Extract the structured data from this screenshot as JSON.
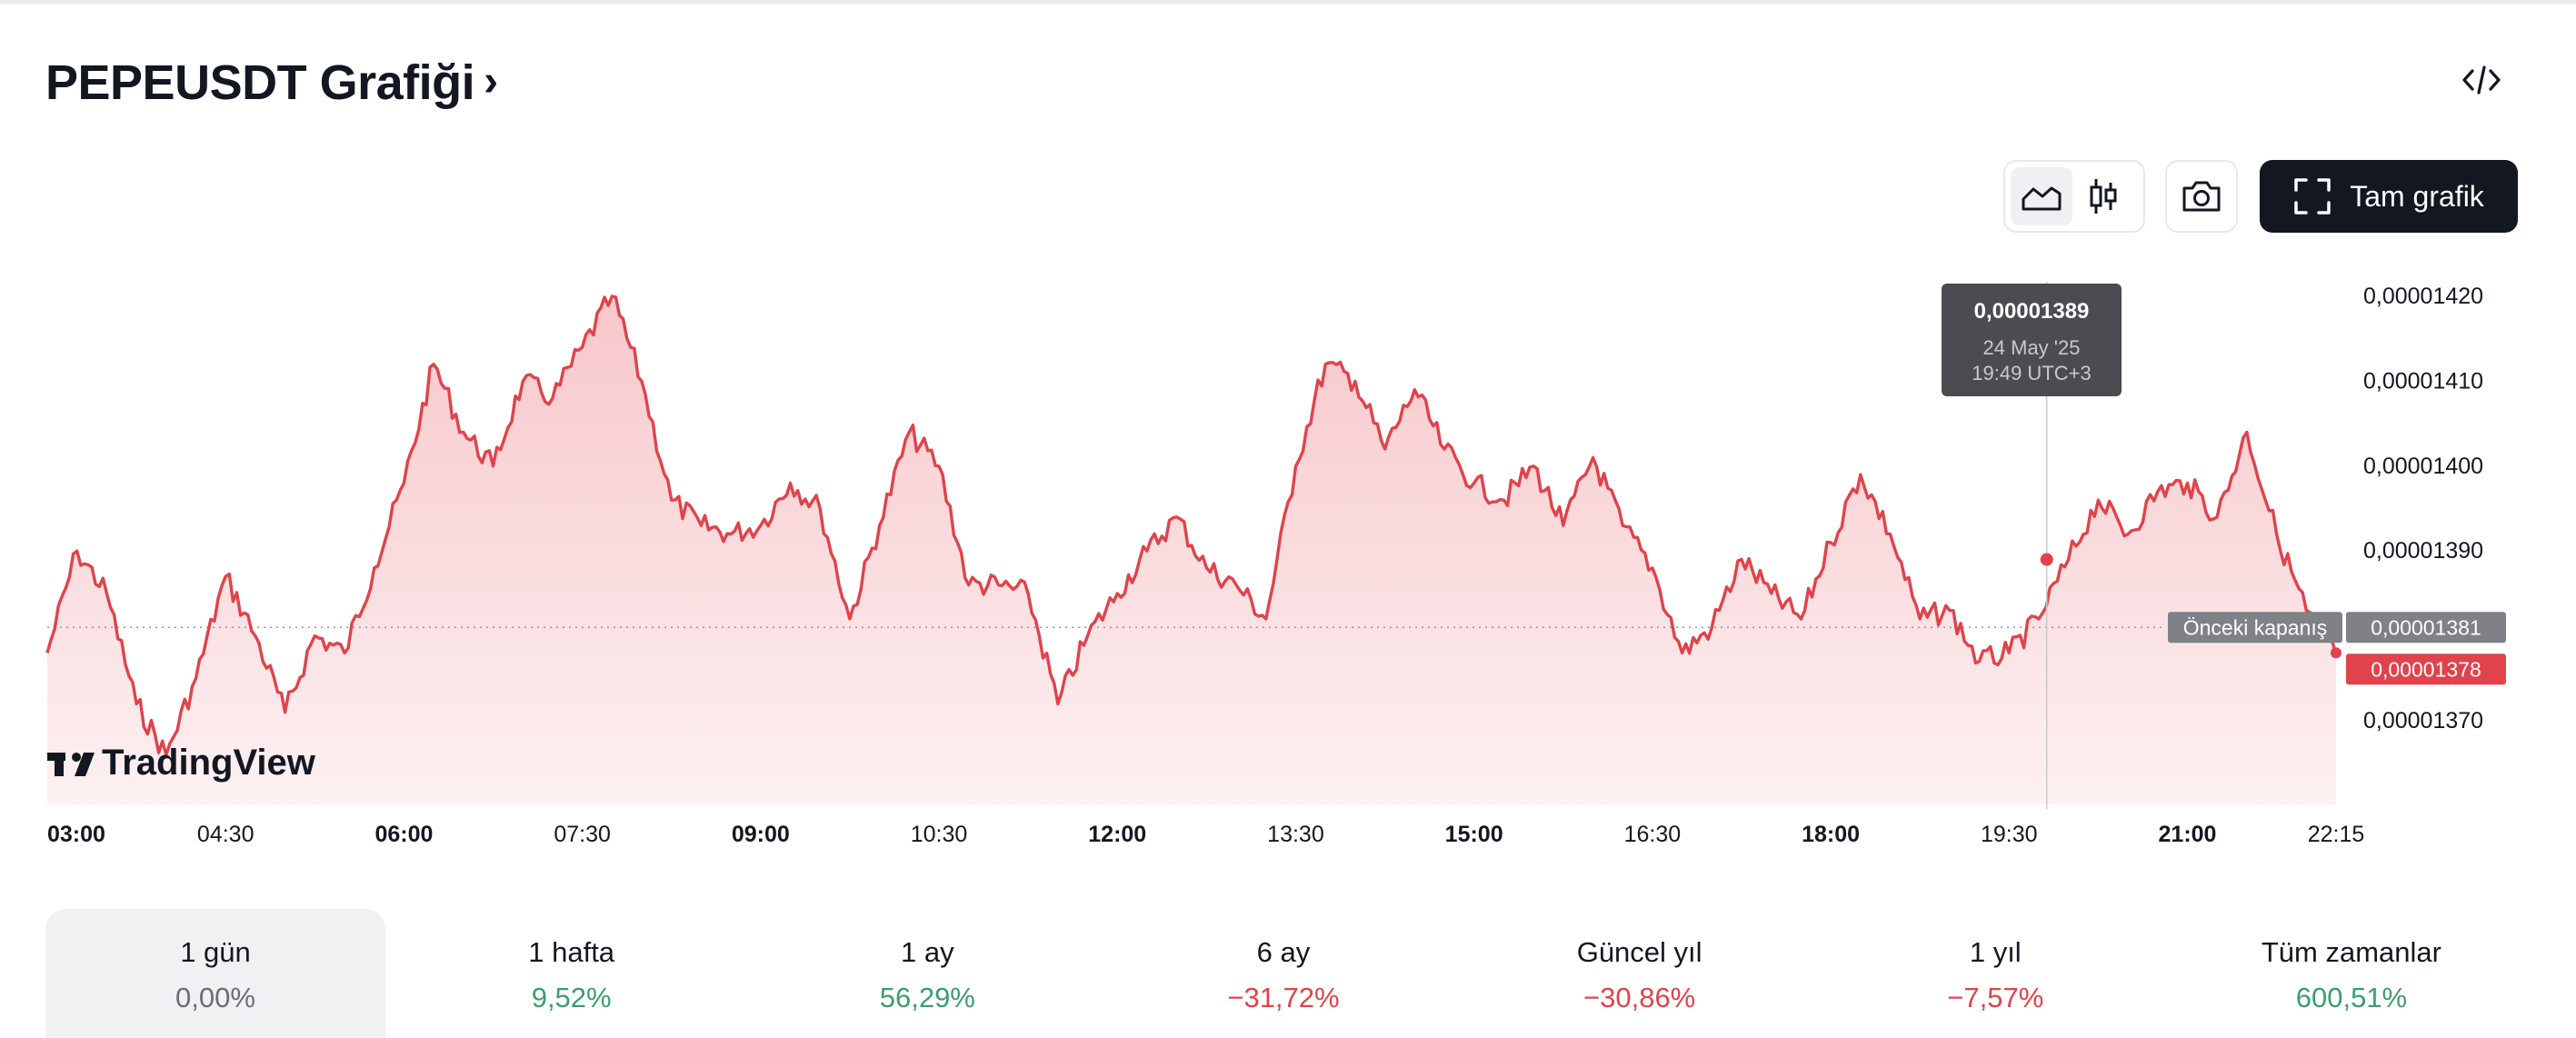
{
  "title": "PEPEUSDT Grafiği",
  "title_chevron": "›",
  "icons": {
    "embed": "code-embed-icon",
    "area_chart": "area-chart-icon",
    "candles": "candlestick-icon",
    "camera": "camera-icon",
    "fullscreen": "fullscreen-corners-icon",
    "logo": "tradingview-logo"
  },
  "buttons": {
    "full_chart": "Tam grafik"
  },
  "colors": {
    "line": "#e0434b",
    "area_top": "#f7c7ca",
    "negative": "#e0434b",
    "positive": "#3a9e6e",
    "tooltip_bg": "#4a4c52",
    "prev_close_bg": "#7f8186"
  },
  "chart_data": {
    "type": "area",
    "symbol": "PEPEUSDT",
    "ylim": [
      1.361e-05,
      1.423e-05
    ],
    "y_ticks": [
      "0,00001420",
      "0,00001410",
      "0,00001400",
      "0,00001390",
      "0,00001370"
    ],
    "x_ticks": [
      {
        "label": "03:00",
        "bold": true
      },
      {
        "label": "04:30",
        "bold": false
      },
      {
        "label": "06:00",
        "bold": true
      },
      {
        "label": "07:30",
        "bold": false
      },
      {
        "label": "09:00",
        "bold": true
      },
      {
        "label": "10:30",
        "bold": false
      },
      {
        "label": "12:00",
        "bold": true
      },
      {
        "label": "13:30",
        "bold": false
      },
      {
        "label": "15:00",
        "bold": true
      },
      {
        "label": "16:30",
        "bold": false
      },
      {
        "label": "18:00",
        "bold": true
      },
      {
        "label": "19:30",
        "bold": false
      },
      {
        "label": "21:00",
        "bold": true
      },
      {
        "label": "22:15",
        "bold": false
      }
    ],
    "series": [
      {
        "time": [
          "03:00",
          "03:15",
          "03:30",
          "03:45",
          "04:00",
          "04:15",
          "04:30",
          "04:45",
          "05:00",
          "05:15",
          "05:30",
          "05:45",
          "06:00",
          "06:15",
          "06:30",
          "06:45",
          "07:00",
          "07:15",
          "07:30",
          "07:45",
          "08:00",
          "08:15",
          "08:30",
          "08:45",
          "09:00",
          "09:15",
          "09:30",
          "09:45",
          "10:00",
          "10:15",
          "10:30",
          "10:45",
          "11:00",
          "11:15",
          "11:30",
          "11:45",
          "12:00",
          "12:15",
          "12:30",
          "12:45",
          "13:00",
          "13:15",
          "13:30",
          "13:45",
          "14:00",
          "14:15",
          "14:30",
          "14:45",
          "15:00",
          "15:15",
          "15:30",
          "15:45",
          "16:00",
          "16:15",
          "16:30",
          "16:45",
          "17:00",
          "17:15",
          "17:30",
          "17:45",
          "18:00",
          "18:15",
          "18:30",
          "18:45",
          "19:00",
          "19:15",
          "19:30",
          "19:45",
          "20:00",
          "20:15",
          "20:30",
          "20:45",
          "21:00",
          "21:15",
          "21:30",
          "21:45",
          "22:00",
          "22:15"
        ],
        "values": [
          1.378e-05,
          1.39e-05,
          1.385e-05,
          1.372e-05,
          1.366e-05,
          1.375e-05,
          1.387e-05,
          1.38e-05,
          1.371e-05,
          1.38e-05,
          1.378e-05,
          1.388e-05,
          1.398e-05,
          1.412e-05,
          1.404e-05,
          1.4e-05,
          1.41e-05,
          1.408e-05,
          1.414e-05,
          1.42e-05,
          1.41e-05,
          1.396e-05,
          1.393e-05,
          1.392e-05,
          1.393e-05,
          1.398e-05,
          1.395e-05,
          1.382e-05,
          1.393e-05,
          1.404e-05,
          1.4e-05,
          1.386e-05,
          1.386e-05,
          1.385e-05,
          1.372e-05,
          1.38e-05,
          1.385e-05,
          1.39e-05,
          1.394e-05,
          1.388e-05,
          1.386e-05,
          1.382e-05,
          1.4e-05,
          1.412e-05,
          1.41e-05,
          1.402e-05,
          1.409e-05,
          1.402e-05,
          1.398e-05,
          1.396e-05,
          1.4e-05,
          1.393e-05,
          1.401e-05,
          1.393e-05,
          1.388e-05,
          1.378e-05,
          1.381e-05,
          1.389e-05,
          1.385e-05,
          1.382e-05,
          1.391e-05,
          1.399e-05,
          1.392e-05,
          1.382e-05,
          1.383e-05,
          1.377e-05,
          1.378e-05,
          1.382e-05,
          1.389e-05,
          1.396e-05,
          1.392e-05,
          1.397e-05,
          1.398e-05,
          1.394e-05,
          1.404e-05,
          1.392e-05,
          1.383e-05,
          1.378e-05
        ]
      }
    ],
    "previous_close": {
      "label": "Önceki kapanış",
      "value": 1.381e-05,
      "value_label": "0,00001381"
    },
    "last_price": {
      "value": 1.378e-05,
      "value_label": "0,00001378"
    },
    "tooltip": {
      "price": "0,00001389",
      "date": "24 May '25",
      "time": "19:49 UTC+3",
      "x_time": "19:49",
      "value": 1.389e-05
    }
  },
  "periods": [
    {
      "label": "1 gün",
      "value": "0,00%",
      "tone": "neutral",
      "active": true
    },
    {
      "label": "1 hafta",
      "value": "9,52%",
      "tone": "positive",
      "active": false
    },
    {
      "label": "1 ay",
      "value": "56,29%",
      "tone": "positive",
      "active": false
    },
    {
      "label": "6 ay",
      "value": "−31,72%",
      "tone": "negative",
      "active": false
    },
    {
      "label": "Güncel yıl",
      "value": "−30,86%",
      "tone": "negative",
      "active": false
    },
    {
      "label": "1 yıl",
      "value": "−7,57%",
      "tone": "negative",
      "active": false
    },
    {
      "label": "Tüm zamanlar",
      "value": "600,51%",
      "tone": "positive",
      "active": false
    }
  ]
}
